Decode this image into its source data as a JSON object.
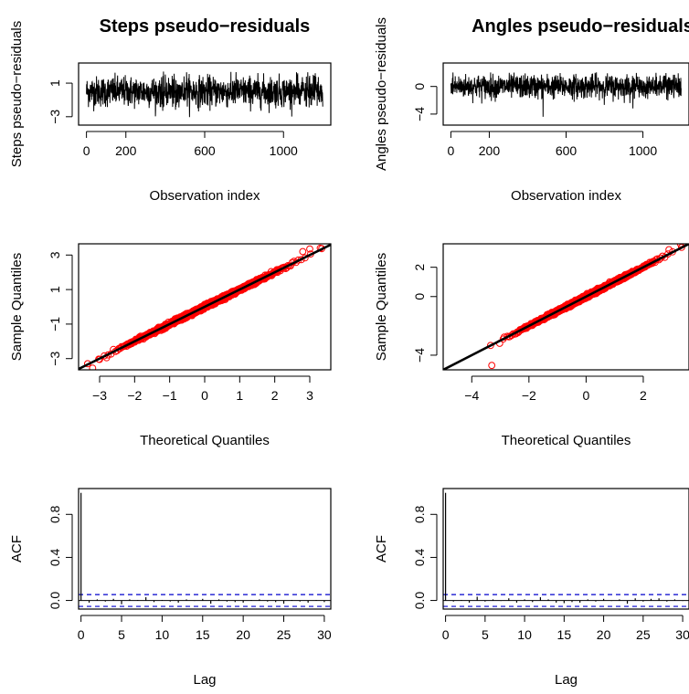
{
  "panels": [
    {
      "id": "steps-ts",
      "title": "Steps pseudo−residuals",
      "xlabel": "Observation index",
      "ylabel": "Steps pseudo−residuals",
      "xticks": [
        {
          "v": 0,
          "t": "0"
        },
        {
          "v": 200,
          "t": "200"
        },
        {
          "v": 600,
          "t": "600"
        },
        {
          "v": 1000,
          "t": "1000"
        }
      ],
      "yticks": [
        {
          "v": -3,
          "t": "−3"
        },
        {
          "v": 1,
          "t": "1"
        }
      ]
    },
    {
      "id": "angles-ts",
      "title": "Angles pseudo−residuals",
      "xlabel": "Observation index",
      "ylabel": "Angles pseudo−residuals",
      "xticks": [
        {
          "v": 0,
          "t": "0"
        },
        {
          "v": 200,
          "t": "200"
        },
        {
          "v": 600,
          "t": "600"
        },
        {
          "v": 1000,
          "t": "1000"
        }
      ],
      "yticks": [
        {
          "v": -4,
          "t": "−4"
        },
        {
          "v": 0,
          "t": "0"
        }
      ]
    },
    {
      "id": "steps-qq",
      "title": "",
      "xlabel": "Theoretical Quantiles",
      "ylabel": "Sample Quantiles",
      "xticks": [
        {
          "v": -3,
          "t": "−3"
        },
        {
          "v": -2,
          "t": "−2"
        },
        {
          "v": -1,
          "t": "−1"
        },
        {
          "v": 0,
          "t": "0"
        },
        {
          "v": 1,
          "t": "1"
        },
        {
          "v": 2,
          "t": "2"
        },
        {
          "v": 3,
          "t": "3"
        }
      ],
      "yticks": [
        {
          "v": -3,
          "t": "−3"
        },
        {
          "v": -1,
          "t": "−1"
        },
        {
          "v": 1,
          "t": "1"
        },
        {
          "v": 3,
          "t": "3"
        }
      ]
    },
    {
      "id": "angles-qq",
      "title": "",
      "xlabel": "Theoretical Quantiles",
      "ylabel": "Sample Quantiles",
      "xticks": [
        {
          "v": -4,
          "t": "−4"
        },
        {
          "v": -2,
          "t": "−2"
        },
        {
          "v": 0,
          "t": "0"
        },
        {
          "v": 2,
          "t": "2"
        }
      ],
      "yticks": [
        {
          "v": -4,
          "t": "−4"
        },
        {
          "v": 0,
          "t": "0"
        },
        {
          "v": 2,
          "t": "2"
        }
      ]
    },
    {
      "id": "steps-acf",
      "title": "",
      "xlabel": "Lag",
      "ylabel": "ACF",
      "xticks": [
        {
          "v": 0,
          "t": "0"
        },
        {
          "v": 5,
          "t": "5"
        },
        {
          "v": 10,
          "t": "10"
        },
        {
          "v": 15,
          "t": "15"
        },
        {
          "v": 20,
          "t": "20"
        },
        {
          "v": 25,
          "t": "25"
        },
        {
          "v": 30,
          "t": "30"
        }
      ],
      "yticks": [
        {
          "v": 0.0,
          "t": "0.0"
        },
        {
          "v": 0.4,
          "t": "0.4"
        },
        {
          "v": 0.8,
          "t": "0.8"
        }
      ]
    },
    {
      "id": "angles-acf",
      "title": "",
      "xlabel": "Lag",
      "ylabel": "ACF",
      "xticks": [
        {
          "v": 0,
          "t": "0"
        },
        {
          "v": 5,
          "t": "5"
        },
        {
          "v": 10,
          "t": "10"
        },
        {
          "v": 15,
          "t": "15"
        },
        {
          "v": 20,
          "t": "20"
        },
        {
          "v": 25,
          "t": "25"
        },
        {
          "v": 30,
          "t": "30"
        }
      ],
      "yticks": [
        {
          "v": 0.0,
          "t": "0.0"
        },
        {
          "v": 0.4,
          "t": "0.4"
        },
        {
          "v": 0.8,
          "t": "0.8"
        }
      ]
    }
  ],
  "chart_data": [
    {
      "type": "line",
      "title": "Steps pseudo−residuals",
      "xlabel": "Observation index",
      "ylabel": "Steps pseudo−residuals",
      "xlim": [
        -40,
        1240
      ],
      "ylim": [
        -4,
        3.4
      ],
      "n": 1200,
      "series": [
        {
          "name": "",
          "y_range": [
            -3.1,
            2.4
          ],
          "spread_sd": 0.9
        }
      ],
      "color": "#000000"
    },
    {
      "type": "line",
      "title": "Angles pseudo−residuals",
      "xlabel": "Observation index",
      "ylabel": "Angles pseudo−residuals",
      "xlim": [
        -40,
        1240
      ],
      "ylim": [
        -5.6,
        3.4
      ],
      "n": 1200,
      "series": [
        {
          "name": "",
          "y_range": [
            -4.4,
            2.1
          ],
          "spread_sd": 0.85,
          "notable_point": {
            "x": 480,
            "y": -4.4
          }
        }
      ],
      "color": "#000000"
    },
    {
      "type": "scatter",
      "title": "",
      "xlabel": "Theoretical Quantiles",
      "ylabel": "Sample Quantiles",
      "xlim": [
        -3.6,
        3.6
      ],
      "ylim": [
        -3.65,
        3.65
      ],
      "points": "normal Q-Q points lying close to the line y = x, from (-3.2, -3.55) to (3.3, 3.4)",
      "endpoints": [
        [
          -3.2,
          -3.55
        ],
        [
          -3.0,
          -3.05
        ],
        [
          -2.8,
          -2.95
        ],
        [
          2.8,
          3.2
        ],
        [
          3.0,
          3.35
        ],
        [
          3.3,
          3.4
        ]
      ],
      "reference_line": {
        "intercept": 0,
        "slope": 1
      },
      "point_color": "#ff0000",
      "line_color": "#000000"
    },
    {
      "type": "scatter",
      "title": "",
      "xlabel": "Theoretical Quantiles",
      "ylabel": "Sample Quantiles",
      "xlim": [
        -5.0,
        3.6
      ],
      "ylim": [
        -5.0,
        3.6
      ],
      "points": "normal Q-Q points along y = x with one low outlier",
      "endpoints": [
        [
          -3.3,
          -4.7
        ],
        [
          -2.9,
          -2.9
        ],
        [
          -2.7,
          -2.75
        ],
        [
          2.9,
          3.2
        ],
        [
          3.3,
          3.6
        ]
      ],
      "reference_line": {
        "intercept": 0,
        "slope": 1
      },
      "point_color": "#ff0000",
      "line_color": "#000000"
    },
    {
      "type": "bar",
      "title": "",
      "xlabel": "Lag",
      "ylabel": "ACF",
      "xlim": [
        -0.3,
        30.8
      ],
      "ylim": [
        -0.08,
        1.04
      ],
      "x": [
        0,
        1,
        2,
        3,
        4,
        5,
        6,
        7,
        8,
        9,
        10,
        11,
        12,
        13,
        14,
        15,
        16,
        17,
        18,
        19,
        20,
        21,
        22,
        23,
        24,
        25,
        26,
        27,
        28,
        29,
        30
      ],
      "values": [
        1.0,
        -0.02,
        0.01,
        -0.01,
        0.015,
        -0.035,
        0.01,
        0.005,
        0.03,
        -0.015,
        0.005,
        -0.01,
        -0.02,
        0.01,
        -0.005,
        0.015,
        -0.03,
        0.01,
        -0.01,
        -0.015,
        -0.02,
        0.005,
        0.01,
        -0.01,
        -0.015,
        -0.03,
        0.005,
        -0.01,
        -0.02,
        0.005,
        -0.015
      ],
      "confidence_band": 0.055,
      "band_color": "#0000cc"
    },
    {
      "type": "bar",
      "title": "",
      "xlabel": "Lag",
      "ylabel": "ACF",
      "xlim": [
        -0.3,
        30.8
      ],
      "ylim": [
        -0.08,
        1.04
      ],
      "x": [
        0,
        1,
        2,
        3,
        4,
        5,
        6,
        7,
        8,
        9,
        10,
        11,
        12,
        13,
        14,
        15,
        16,
        17,
        18,
        19,
        20,
        21,
        22,
        23,
        24,
        25,
        26,
        27,
        28,
        29,
        30
      ],
      "values": [
        1.0,
        -0.01,
        0.005,
        -0.02,
        0.035,
        -0.01,
        0.01,
        -0.005,
        0.02,
        -0.02,
        0.01,
        -0.015,
        0.03,
        0.01,
        -0.02,
        -0.025,
        -0.015,
        -0.02,
        0.01,
        -0.01,
        0.015,
        -0.005,
        0.01,
        -0.03,
        0.02,
        -0.01,
        0.015,
        0.02,
        -0.01,
        0.01,
        -0.005
      ],
      "confidence_band": 0.055,
      "band_color": "#0000cc"
    }
  ]
}
